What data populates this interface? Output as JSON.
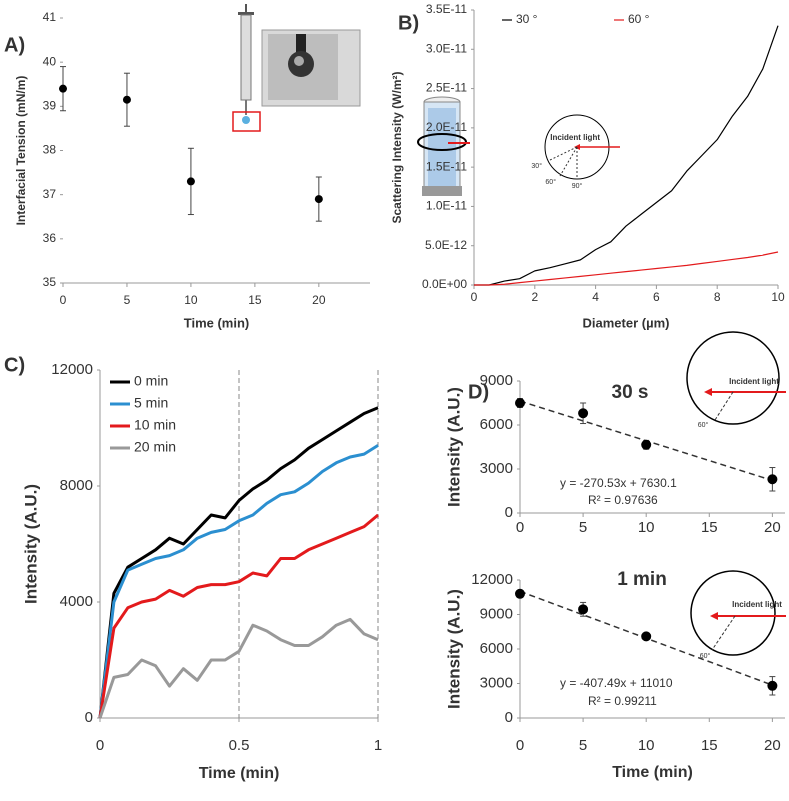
{
  "chart_data": [
    {
      "type": "scatter",
      "panel_label": "A)",
      "x_label": "Time (min)",
      "y_label": "Interfacial Tension (mN/m)",
      "series": [
        {
          "color": "#000000",
          "x": [
            0,
            5,
            10,
            20
          ],
          "values": [
            39.4,
            39.15,
            37.3,
            36.9
          ],
          "errors": [
            0.5,
            0.6,
            0.75,
            0.5
          ]
        }
      ],
      "xlim": [
        0,
        24
      ],
      "xticks": [
        0,
        5,
        10,
        15,
        20
      ],
      "ylim": [
        35,
        41
      ],
      "yticks": [
        35,
        36,
        37,
        38,
        39,
        40,
        41
      ],
      "grid": false
    },
    {
      "type": "line",
      "panel_label": "B)",
      "x_label": "Diameter (µm)",
      "y_label": "Scattering Intensity (W/m²)",
      "legend": "top",
      "x": [
        0,
        0.5,
        1,
        1.5,
        2,
        2.5,
        3,
        3.5,
        4,
        4.5,
        5,
        5.5,
        6,
        6.5,
        7,
        7.5,
        8,
        8.5,
        9,
        9.5,
        10
      ],
      "series": [
        {
          "name": "30 °",
          "color": "#000000",
          "values": [
            0,
            0,
            5e-13,
            8e-13,
            1.8e-12,
            2.2e-12,
            2.7e-12,
            3.2e-12,
            4.5e-12,
            5.5e-12,
            7.5e-12,
            9e-12,
            1.05e-11,
            1.2e-11,
            1.45e-11,
            1.65e-11,
            1.85e-11,
            2.15e-11,
            2.4e-11,
            2.75e-11,
            3.3e-11
          ]
        },
        {
          "name": "60 °",
          "color": "#e31a1c",
          "values": [
            0,
            0,
            1e-13,
            3e-13,
            5e-13,
            7e-13,
            9e-13,
            1.1e-12,
            1.3e-12,
            1.5e-12,
            1.7e-12,
            1.9e-12,
            2.1e-12,
            2.3e-12,
            2.5e-12,
            2.75e-12,
            3e-12,
            3.25e-12,
            3.5e-12,
            3.8e-12,
            4.2e-12
          ]
        }
      ],
      "xlim": [
        0,
        10
      ],
      "xticks": [
        0,
        2,
        4,
        6,
        8,
        10
      ],
      "ylim": [
        0,
        3.5e-11
      ],
      "yticks": [
        {
          "value": 0,
          "label": "0.0E+00"
        },
        {
          "value": 5e-12,
          "label": "5.0E-12"
        },
        {
          "value": 1e-11,
          "label": "1.0E-11"
        },
        {
          "value": 1.5e-11,
          "label": "1.5E-11"
        },
        {
          "value": 2e-11,
          "label": "2.0E-11"
        },
        {
          "value": 2.5e-11,
          "label": "2.5E-11"
        },
        {
          "value": 3e-11,
          "label": "3.0E-11"
        },
        {
          "value": 3.5e-11,
          "label": "3.5E-11"
        }
      ],
      "inset_labels": [
        "Incident light",
        "30°",
        "60°",
        "90°"
      ]
    },
    {
      "type": "line",
      "panel_label": "C)",
      "x_label": "Time (min)",
      "y_label": "Intensity (A.U.)",
      "legend": "upper left",
      "x": [
        0,
        0.05,
        0.1,
        0.15,
        0.2,
        0.25,
        0.3,
        0.35,
        0.4,
        0.45,
        0.5,
        0.55,
        0.6,
        0.65,
        0.7,
        0.75,
        0.8,
        0.85,
        0.9,
        0.95,
        1
      ],
      "series": [
        {
          "name": "0 min",
          "color": "#000000",
          "values": [
            0,
            4300,
            5200,
            5500,
            5800,
            6200,
            6000,
            6500,
            7000,
            6900,
            7500,
            7900,
            8200,
            8600,
            8900,
            9300,
            9600,
            9900,
            10200,
            10500,
            10700
          ]
        },
        {
          "name": "5 min",
          "color": "#2b8fd0",
          "values": [
            0,
            4000,
            5100,
            5300,
            5500,
            5600,
            5800,
            6200,
            6400,
            6500,
            6800,
            7000,
            7400,
            7700,
            7800,
            8100,
            8500,
            8800,
            9000,
            9100,
            9400
          ]
        },
        {
          "name": "10 min",
          "color": "#e31a1c",
          "values": [
            0,
            3100,
            3800,
            4000,
            4100,
            4400,
            4200,
            4500,
            4600,
            4600,
            4700,
            5000,
            4900,
            5500,
            5500,
            5800,
            6000,
            6200,
            6400,
            6600,
            7000
          ]
        },
        {
          "name": "20 min",
          "color": "#999999",
          "values": [
            0,
            1400,
            1500,
            2000,
            1800,
            1100,
            1700,
            1300,
            2000,
            2000,
            2300,
            3200,
            3000,
            2700,
            2500,
            2500,
            2800,
            3200,
            3400,
            2900,
            2700
          ]
        }
      ],
      "xlim": [
        0,
        1
      ],
      "xticks": [
        0,
        0.5,
        1
      ],
      "ylim": [
        0,
        12000
      ],
      "yticks": [
        0,
        4000,
        8000,
        12000
      ],
      "vlines": [
        0.5,
        1
      ]
    },
    {
      "type": "scatter",
      "panel_label": "D)",
      "title": "30 s",
      "y_label": "Intensity (A.U.)",
      "series": [
        {
          "color": "#000000",
          "x": [
            0,
            5,
            10,
            20
          ],
          "values": [
            7500,
            6800,
            4650,
            2300
          ],
          "errors": [
            300,
            700,
            300,
            800
          ]
        }
      ],
      "trendline": {
        "slope": -270.53,
        "intercept": 7630.1
      },
      "annotations": [
        "y = -270.53x + 7630.1",
        "R² = 0.97636"
      ],
      "xlim": [
        0,
        21
      ],
      "xticks": [
        0,
        5,
        10,
        15,
        20
      ],
      "ylim": [
        0,
        9000
      ],
      "yticks": [
        0,
        3000,
        6000,
        9000
      ],
      "inset_labels": [
        "Incident light",
        "60°"
      ]
    },
    {
      "type": "scatter",
      "title": "1 min",
      "x_label": "Time (min)",
      "y_label": "Intensity (A.U.)",
      "series": [
        {
          "color": "#000000",
          "x": [
            0,
            5,
            10,
            20
          ],
          "values": [
            10800,
            9450,
            7100,
            2800
          ],
          "errors": [
            300,
            600,
            250,
            800
          ]
        }
      ],
      "trendline": {
        "slope": -407.49,
        "intercept": 11010
      },
      "annotations": [
        "y = -407.49x + 11010",
        "R² = 0.99211"
      ],
      "xlim": [
        0,
        21
      ],
      "xticks": [
        0,
        5,
        10,
        15,
        20
      ],
      "ylim": [
        0,
        12000
      ],
      "yticks": [
        0,
        3000,
        6000,
        9000,
        12000
      ],
      "inset_labels": [
        "Incident light",
        "60°"
      ]
    }
  ]
}
